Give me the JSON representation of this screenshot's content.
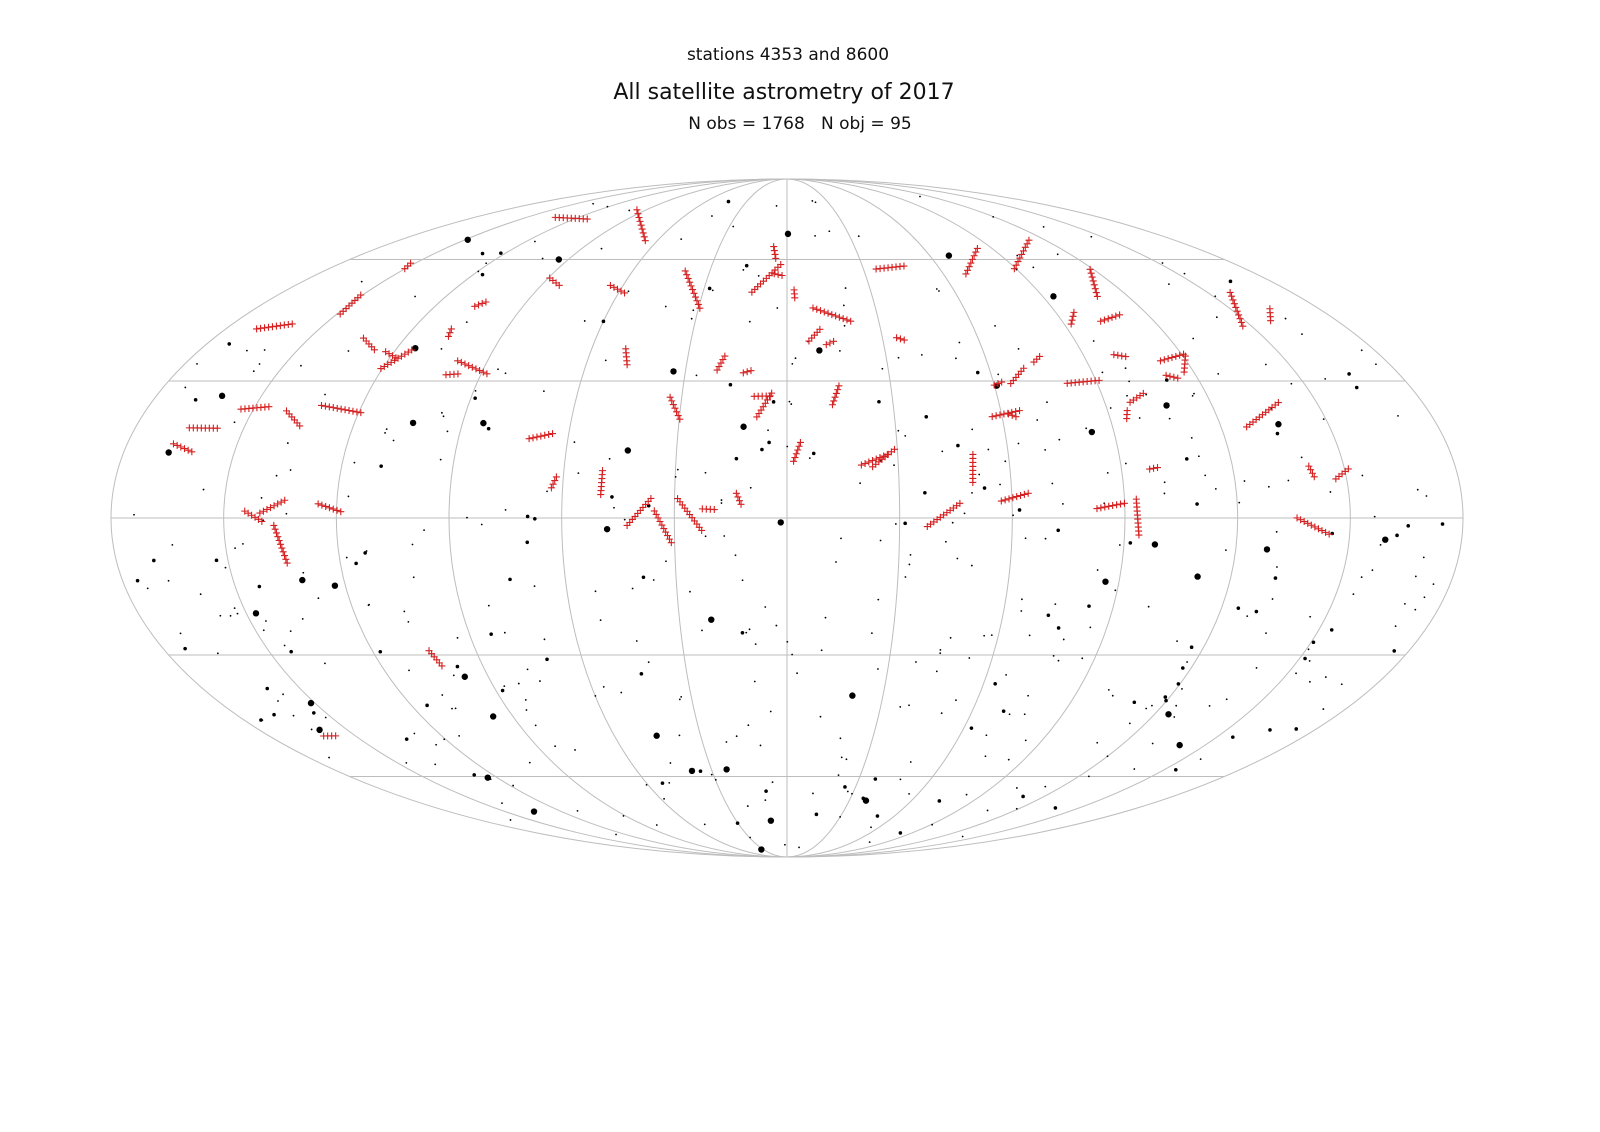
{
  "header": {
    "stations": "stations 4353 and 8600",
    "title": "All satellite astrometry of 2017",
    "stats": "N obs = 1768   N obj = 95"
  }
}
